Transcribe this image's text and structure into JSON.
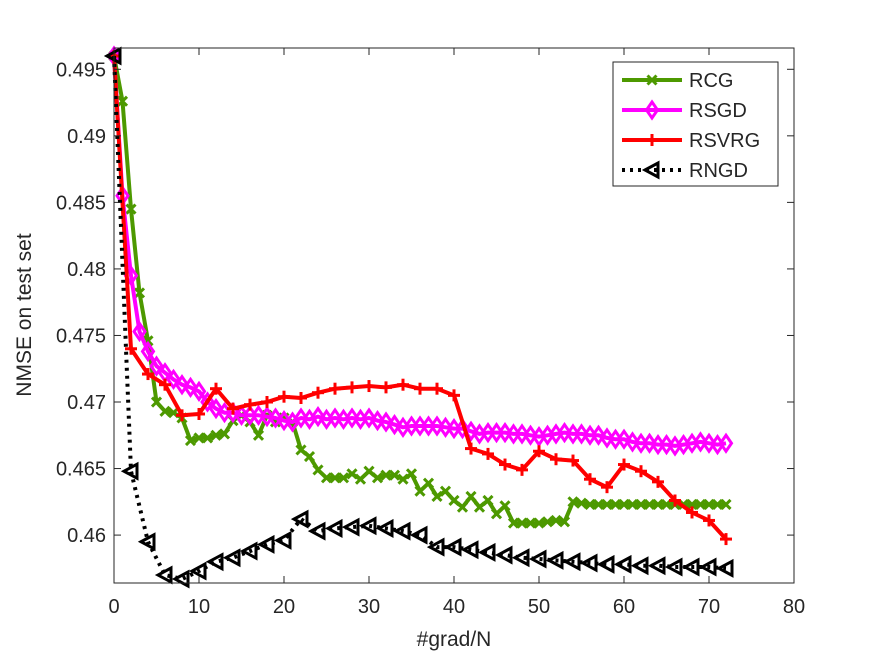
{
  "chart_data": {
    "type": "line",
    "title": "",
    "xlabel": "#grad/N",
    "ylabel": "NMSE on test set",
    "xlim": [
      0,
      80
    ],
    "ylim": [
      0.4564,
      0.4966
    ],
    "xticks": [
      0,
      10,
      20,
      30,
      40,
      50,
      60,
      70,
      80
    ],
    "xtick_labels": [
      "0",
      "10",
      "20",
      "30",
      "40",
      "50",
      "60",
      "70",
      "80"
    ],
    "yticks": [
      0.46,
      0.465,
      0.47,
      0.475,
      0.48,
      0.485,
      0.49,
      0.495
    ],
    "ytick_labels": [
      "0.46",
      "0.465",
      "0.47",
      "0.475",
      "0.48",
      "0.485",
      "0.49",
      "0.495"
    ],
    "grid": false,
    "legend_position": "top-right",
    "series": [
      {
        "name": "RCG",
        "color": "#4d9900",
        "line": "solid",
        "marker": "x",
        "x": [
          0,
          1,
          2,
          3,
          4,
          5,
          6,
          7,
          8,
          9,
          10,
          11,
          12,
          13,
          14,
          15,
          16,
          17,
          18,
          19,
          20,
          21,
          22,
          23,
          24,
          25,
          26,
          27,
          28,
          29,
          30,
          31,
          32,
          33,
          34,
          35,
          36,
          37,
          38,
          39,
          40,
          41,
          42,
          43,
          44,
          45,
          46,
          47,
          48,
          49,
          50,
          51,
          52,
          53,
          54,
          55,
          56,
          57,
          58,
          59,
          60,
          61,
          62,
          63,
          64,
          65,
          66,
          67,
          68,
          69,
          70,
          71,
          72
        ],
        "y": [
          0.496,
          0.4926,
          0.4845,
          0.4782,
          0.4746,
          0.47,
          0.4693,
          0.4692,
          0.4688,
          0.4671,
          0.4673,
          0.4673,
          0.4675,
          0.4676,
          0.4686,
          0.469,
          0.4685,
          0.4675,
          0.469,
          0.4685,
          0.4688,
          0.4685,
          0.4664,
          0.4659,
          0.4649,
          0.4643,
          0.4643,
          0.4643,
          0.4646,
          0.4642,
          0.4648,
          0.4643,
          0.4645,
          0.4645,
          0.4642,
          0.4646,
          0.4633,
          0.4639,
          0.4629,
          0.4633,
          0.4626,
          0.4621,
          0.4629,
          0.4621,
          0.4626,
          0.4616,
          0.4622,
          0.4609,
          0.4609,
          0.4609,
          0.4609,
          0.461,
          0.4611,
          0.461,
          0.4625,
          0.4624,
          0.4623,
          0.4623,
          0.4623,
          0.4623,
          0.4623,
          0.4623,
          0.4623,
          0.4623,
          0.4623,
          0.4623,
          0.4623,
          0.4623,
          0.4623,
          0.4623,
          0.4623,
          0.4623,
          0.4623
        ]
      },
      {
        "name": "RSGD",
        "color": "#ff00ff",
        "line": "solid",
        "marker": "diamond",
        "x": [
          0,
          1,
          2,
          3,
          4,
          5,
          6,
          7,
          8,
          9,
          10,
          11,
          12,
          13,
          14,
          15,
          16,
          17,
          18,
          19,
          20,
          21,
          22,
          23,
          24,
          25,
          26,
          27,
          28,
          29,
          30,
          31,
          32,
          33,
          34,
          35,
          36,
          37,
          38,
          39,
          40,
          41,
          42,
          43,
          44,
          45,
          46,
          47,
          48,
          49,
          50,
          51,
          52,
          53,
          54,
          55,
          56,
          57,
          58,
          59,
          60,
          61,
          62,
          63,
          64,
          65,
          66,
          67,
          68,
          69,
          70,
          71,
          72
        ],
        "y": [
          0.496,
          0.4855,
          0.4795,
          0.4753,
          0.4738,
          0.4727,
          0.4722,
          0.4717,
          0.4713,
          0.4711,
          0.4708,
          0.47,
          0.4695,
          0.4692,
          0.4692,
          0.469,
          0.469,
          0.469,
          0.4689,
          0.4688,
          0.4686,
          0.4685,
          0.4688,
          0.4687,
          0.4689,
          0.4687,
          0.4688,
          0.4687,
          0.4688,
          0.4687,
          0.4688,
          0.4686,
          0.4685,
          0.4683,
          0.4681,
          0.4682,
          0.4682,
          0.4682,
          0.4682,
          0.4681,
          0.468,
          0.468,
          0.4678,
          0.4676,
          0.4677,
          0.4677,
          0.4677,
          0.4676,
          0.4676,
          0.4675,
          0.4674,
          0.4675,
          0.4676,
          0.4677,
          0.4676,
          0.4676,
          0.4675,
          0.4675,
          0.4673,
          0.4672,
          0.4672,
          0.467,
          0.4669,
          0.4669,
          0.4668,
          0.4668,
          0.4667,
          0.4668,
          0.4669,
          0.467,
          0.4669,
          0.4668,
          0.4669
        ]
      },
      {
        "name": "RSVRG",
        "color": "#ff0000",
        "line": "solid",
        "marker": "plus",
        "x": [
          0,
          2,
          4,
          6,
          8,
          10,
          12,
          14,
          16,
          18,
          20,
          22,
          24,
          26,
          28,
          30,
          32,
          34,
          36,
          38,
          40,
          42,
          44,
          46,
          48,
          50,
          52,
          54,
          56,
          58,
          60,
          62,
          64,
          66,
          68,
          70,
          72
        ],
        "y": [
          0.496,
          0.474,
          0.4721,
          0.4713,
          0.469,
          0.4691,
          0.471,
          0.4695,
          0.4698,
          0.47,
          0.4704,
          0.4703,
          0.4707,
          0.471,
          0.4711,
          0.4712,
          0.4711,
          0.4713,
          0.471,
          0.471,
          0.4705,
          0.4665,
          0.4661,
          0.4653,
          0.4649,
          0.4663,
          0.4657,
          0.4656,
          0.4642,
          0.4636,
          0.4653,
          0.4648,
          0.464,
          0.4626,
          0.4617,
          0.4611,
          0.4597
        ]
      },
      {
        "name": "RNGD",
        "color": "#000000",
        "line": "dotted",
        "marker": "triangle-left",
        "x": [
          0,
          2,
          4,
          6,
          8,
          10,
          12,
          14,
          16,
          18,
          20,
          22,
          24,
          26,
          28,
          30,
          32,
          34,
          36,
          38,
          40,
          42,
          44,
          46,
          48,
          50,
          52,
          54,
          56,
          58,
          60,
          62,
          64,
          66,
          68,
          70,
          72
        ],
        "y": [
          0.496,
          0.4648,
          0.4595,
          0.457,
          0.4567,
          0.4573,
          0.458,
          0.4583,
          0.4588,
          0.4593,
          0.4596,
          0.4612,
          0.4603,
          0.4605,
          0.4606,
          0.4607,
          0.4605,
          0.4603,
          0.46,
          0.4591,
          0.4591,
          0.4589,
          0.4587,
          0.4585,
          0.4583,
          0.4582,
          0.4581,
          0.458,
          0.4579,
          0.4578,
          0.4578,
          0.4577,
          0.4577,
          0.4576,
          0.4576,
          0.4576,
          0.4575
        ]
      }
    ]
  }
}
